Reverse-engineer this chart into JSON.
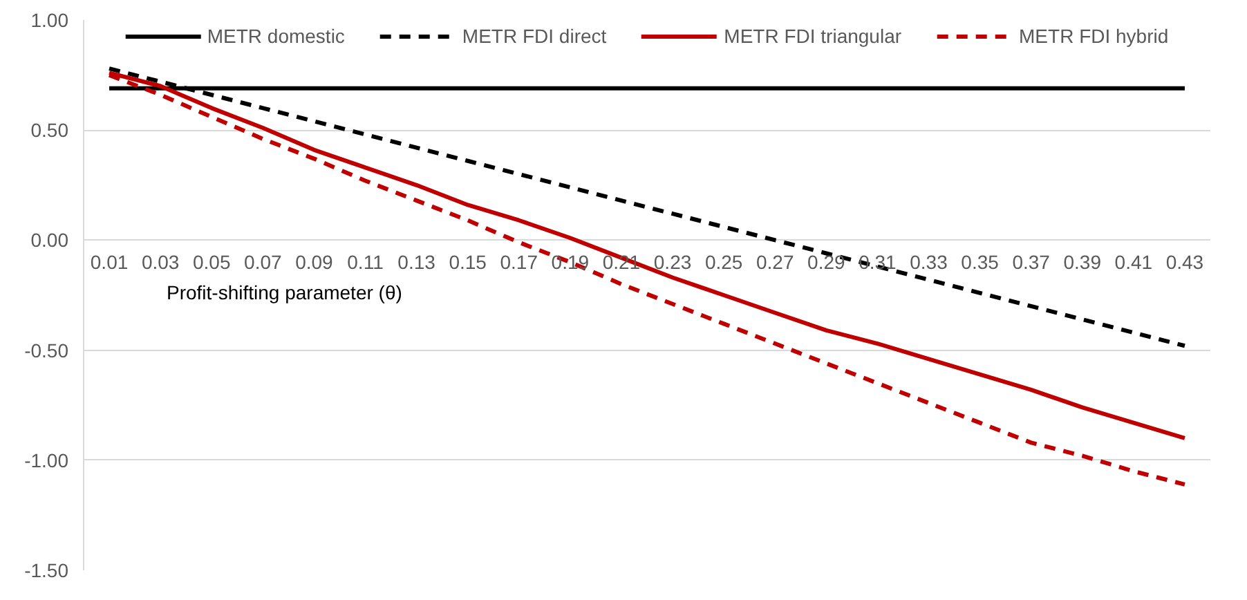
{
  "chart_data": {
    "type": "line",
    "xlabel": "Profit-shifting parameter (θ)",
    "x": [
      0.01,
      0.03,
      0.05,
      0.07,
      0.09,
      0.11,
      0.13,
      0.15,
      0.17,
      0.19,
      0.21,
      0.23,
      0.25,
      0.27,
      0.29,
      0.31,
      0.33,
      0.35,
      0.37,
      0.39,
      0.41,
      0.43
    ],
    "xlim": [
      0.0,
      0.44
    ],
    "xticks": [
      {
        "value": 0.01,
        "label": "0.01"
      },
      {
        "value": 0.03,
        "label": "0.03"
      },
      {
        "value": 0.05,
        "label": "0.05"
      },
      {
        "value": 0.07,
        "label": "0.07"
      },
      {
        "value": 0.09,
        "label": "0.09"
      },
      {
        "value": 0.11,
        "label": "0.11"
      },
      {
        "value": 0.13,
        "label": "0.13"
      },
      {
        "value": 0.15,
        "label": "0.15"
      },
      {
        "value": 0.17,
        "label": "0.17"
      },
      {
        "value": 0.19,
        "label": "0.19"
      },
      {
        "value": 0.21,
        "label": "0.21"
      },
      {
        "value": 0.23,
        "label": "0.23"
      },
      {
        "value": 0.25,
        "label": "0.25"
      },
      {
        "value": 0.27,
        "label": "0.27"
      },
      {
        "value": 0.29,
        "label": "0.29"
      },
      {
        "value": 0.31,
        "label": "0.31"
      },
      {
        "value": 0.33,
        "label": "0.33"
      },
      {
        "value": 0.35,
        "label": "0.35"
      },
      {
        "value": 0.37,
        "label": "0.37"
      },
      {
        "value": 0.39,
        "label": "0.39"
      },
      {
        "value": 0.41,
        "label": "0.41"
      },
      {
        "value": 0.43,
        "label": "0.43"
      }
    ],
    "ylim": [
      -1.5,
      1.0
    ],
    "yticks": [
      {
        "value": 1.0,
        "label": "1.00"
      },
      {
        "value": 0.5,
        "label": "0.50"
      },
      {
        "value": 0,
        "label": "0.00"
      },
      {
        "value": -0.5,
        "label": "-0.50"
      },
      {
        "value": -1.0,
        "label": "-1.00"
      },
      {
        "value": -1.5,
        "label": "-1.50"
      }
    ],
    "grid": "y",
    "legend": "top",
    "marker": "none",
    "series": [
      {
        "name": "METR domestic",
        "color": "#000000",
        "line_style": "solid",
        "values": [
          0.69,
          0.69,
          0.69,
          0.69,
          0.69,
          0.69,
          0.69,
          0.69,
          0.69,
          0.69,
          0.69,
          0.69,
          0.69,
          0.69,
          0.69,
          0.69,
          0.69,
          0.69,
          0.69,
          0.69,
          0.69,
          0.69
        ]
      },
      {
        "name": "METR FDI direct",
        "color": "#000000",
        "line_style": "dashed",
        "values": [
          0.78,
          0.72,
          0.66,
          0.6,
          0.54,
          0.48,
          0.42,
          0.36,
          0.3,
          0.24,
          0.18,
          0.12,
          0.06,
          0.0,
          -0.06,
          -0.12,
          -0.18,
          -0.24,
          -0.3,
          -0.36,
          -0.42,
          -0.48
        ]
      },
      {
        "name": "METR FDI triangular",
        "color": "#c00000",
        "line_style": "solid",
        "values": [
          0.76,
          0.7,
          0.6,
          0.51,
          0.41,
          0.33,
          0.25,
          0.16,
          0.09,
          0.01,
          -0.08,
          -0.17,
          -0.25,
          -0.33,
          -0.41,
          -0.47,
          -0.54,
          -0.61,
          -0.68,
          -0.76,
          -0.83,
          -0.9
        ]
      },
      {
        "name": "METR FDI hybrid",
        "color": "#c00000",
        "line_style": "dashed",
        "values": [
          0.75,
          0.66,
          0.56,
          0.46,
          0.37,
          0.27,
          0.18,
          0.09,
          -0.01,
          -0.1,
          -0.2,
          -0.29,
          -0.38,
          -0.47,
          -0.56,
          -0.65,
          -0.74,
          -0.83,
          -0.92,
          -0.98,
          -1.05,
          -1.11
        ]
      }
    ]
  }
}
